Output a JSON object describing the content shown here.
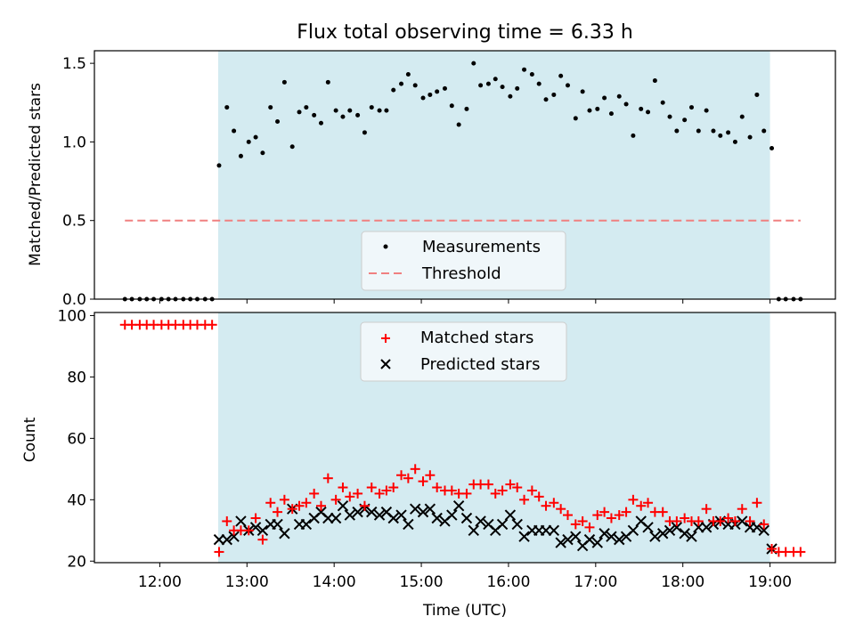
{
  "chart_data": [
    {
      "type": "scatter",
      "title": "Flux total observing time = 6.33 h",
      "ylabel": "Matched/Predicted stars",
      "xlim_hours": [
        11.25,
        19.75
      ],
      "ylim": [
        0,
        1.58
      ],
      "yticks": [
        "0.0",
        "0.5",
        "1.0",
        "1.5"
      ],
      "shaded_interval_hours": [
        12.67,
        19.0
      ],
      "shade_color": "#d4ebf1",
      "legend_position": "lower center",
      "threshold": {
        "name": "Threshold",
        "value": 0.5,
        "x_range_hours": [
          11.6,
          19.35
        ],
        "color": "#f08080"
      },
      "series": [
        {
          "name": "Measurements",
          "marker": "dot",
          "color": "#000000",
          "x_hours": [
            11.6,
            11.68,
            11.77,
            11.85,
            11.93,
            12.02,
            12.1,
            12.18,
            12.27,
            12.35,
            12.43,
            12.52,
            12.6,
            12.68,
            12.77,
            12.85,
            12.93,
            13.02,
            13.1,
            13.18,
            13.27,
            13.35,
            13.43,
            13.52,
            13.6,
            13.68,
            13.77,
            13.85,
            13.93,
            14.02,
            14.1,
            14.18,
            14.27,
            14.35,
            14.43,
            14.52,
            14.6,
            14.68,
            14.77,
            14.85,
            14.93,
            15.02,
            15.1,
            15.18,
            15.27,
            15.35,
            15.43,
            15.52,
            15.6,
            15.68,
            15.77,
            15.85,
            15.93,
            16.02,
            16.1,
            16.18,
            16.27,
            16.35,
            16.43,
            16.52,
            16.6,
            16.68,
            16.77,
            16.85,
            16.93,
            17.02,
            17.1,
            17.18,
            17.27,
            17.35,
            17.43,
            17.52,
            17.6,
            17.68,
            17.77,
            17.85,
            17.93,
            18.02,
            18.1,
            18.18,
            18.27,
            18.35,
            18.43,
            18.52,
            18.6,
            18.68,
            18.77,
            18.85,
            18.93,
            19.02,
            19.1,
            19.18,
            19.27,
            19.35
          ],
          "y": [
            0,
            0,
            0,
            0,
            0,
            0,
            0,
            0,
            0,
            0,
            0,
            0,
            0,
            0.85,
            1.22,
            1.07,
            0.91,
            1.0,
            1.03,
            0.93,
            1.22,
            1.13,
            1.38,
            0.97,
            1.19,
            1.22,
            1.17,
            1.12,
            1.38,
            1.2,
            1.16,
            1.2,
            1.17,
            1.06,
            1.22,
            1.2,
            1.2,
            1.33,
            1.37,
            1.43,
            1.36,
            1.28,
            1.3,
            1.32,
            1.34,
            1.23,
            1.11,
            1.21,
            1.5,
            1.36,
            1.37,
            1.4,
            1.35,
            1.29,
            1.34,
            1.46,
            1.43,
            1.37,
            1.27,
            1.3,
            1.42,
            1.36,
            1.15,
            1.32,
            1.2,
            1.21,
            1.28,
            1.18,
            1.29,
            1.24,
            1.04,
            1.21,
            1.19,
            1.39,
            1.25,
            1.16,
            1.07,
            1.14,
            1.22,
            1.07,
            1.2,
            1.07,
            1.04,
            1.06,
            1.0,
            1.16,
            1.03,
            1.3,
            1.07,
            0.96,
            0,
            0,
            0,
            0
          ]
        }
      ]
    },
    {
      "type": "scatter",
      "xlabel": "Time (UTC)",
      "ylabel": "Count",
      "xlim_hours": [
        11.25,
        19.75
      ],
      "ylim": [
        19.5,
        101
      ],
      "yticks": [
        "20",
        "40",
        "60",
        "80",
        "100"
      ],
      "xticks": [
        "12:00",
        "13:00",
        "14:00",
        "15:00",
        "16:00",
        "17:00",
        "18:00",
        "19:00"
      ],
      "shaded_interval_hours": [
        12.67,
        19.0
      ],
      "shade_color": "#d4ebf1",
      "legend_position": "upper center",
      "series": [
        {
          "name": "Matched stars",
          "marker": "plus",
          "color": "#ff0000",
          "x_hours": [
            11.6,
            11.68,
            11.77,
            11.85,
            11.93,
            12.02,
            12.1,
            12.18,
            12.27,
            12.35,
            12.43,
            12.52,
            12.6,
            12.68,
            12.77,
            12.85,
            12.93,
            13.02,
            13.1,
            13.18,
            13.27,
            13.35,
            13.43,
            13.52,
            13.6,
            13.68,
            13.77,
            13.85,
            13.93,
            14.02,
            14.1,
            14.18,
            14.27,
            14.35,
            14.43,
            14.52,
            14.6,
            14.68,
            14.77,
            14.85,
            14.93,
            15.02,
            15.1,
            15.18,
            15.27,
            15.35,
            15.43,
            15.52,
            15.6,
            15.68,
            15.77,
            15.85,
            15.93,
            16.02,
            16.1,
            16.18,
            16.27,
            16.35,
            16.43,
            16.52,
            16.6,
            16.68,
            16.77,
            16.85,
            16.93,
            17.02,
            17.1,
            17.18,
            17.27,
            17.35,
            17.43,
            17.52,
            17.6,
            17.68,
            17.77,
            17.85,
            17.93,
            18.02,
            18.1,
            18.18,
            18.27,
            18.35,
            18.43,
            18.52,
            18.6,
            18.68,
            18.77,
            18.85,
            18.93,
            19.02,
            19.1,
            19.18,
            19.27,
            19.35
          ],
          "y": [
            97,
            97,
            97,
            97,
            97,
            97,
            97,
            97,
            97,
            97,
            97,
            97,
            97,
            23,
            33,
            30,
            30,
            30,
            34,
            27,
            39,
            36,
            40,
            37,
            38,
            39,
            42,
            38,
            47,
            40,
            44,
            41,
            42,
            38,
            44,
            42,
            43,
            44,
            48,
            47,
            50,
            46,
            48,
            44,
            43,
            43,
            42,
            42,
            45,
            45,
            45,
            42,
            43,
            45,
            44,
            40,
            43,
            41,
            38,
            39,
            37,
            35,
            32,
            33,
            31,
            35,
            36,
            34,
            35,
            36,
            40,
            38,
            39,
            36,
            36,
            33,
            33,
            34,
            33,
            33,
            37,
            33,
            33,
            34,
            33,
            37,
            33,
            39,
            32,
            24,
            23,
            23,
            23,
            23
          ]
        },
        {
          "name": "Predicted stars",
          "marker": "x",
          "color": "#000000",
          "x_hours": [
            12.68,
            12.77,
            12.85,
            12.93,
            13.02,
            13.1,
            13.18,
            13.27,
            13.35,
            13.43,
            13.52,
            13.6,
            13.68,
            13.77,
            13.85,
            13.93,
            14.02,
            14.1,
            14.18,
            14.27,
            14.35,
            14.43,
            14.52,
            14.6,
            14.68,
            14.77,
            14.85,
            14.93,
            15.02,
            15.1,
            15.18,
            15.27,
            15.35,
            15.43,
            15.52,
            15.6,
            15.68,
            15.77,
            15.85,
            15.93,
            16.02,
            16.1,
            16.18,
            16.27,
            16.35,
            16.43,
            16.52,
            16.6,
            16.68,
            16.77,
            16.85,
            16.93,
            17.02,
            17.1,
            17.18,
            17.27,
            17.35,
            17.43,
            17.52,
            17.6,
            17.68,
            17.77,
            17.85,
            17.93,
            18.02,
            18.1,
            18.18,
            18.27,
            18.35,
            18.43,
            18.52,
            18.6,
            18.68,
            18.77,
            18.85,
            18.93,
            19.02
          ],
          "y": [
            27,
            27,
            28,
            33,
            30,
            31,
            30,
            32,
            32,
            29,
            37,
            32,
            32,
            34,
            36,
            34,
            34,
            38,
            35,
            36,
            37,
            36,
            35,
            36,
            34,
            35,
            32,
            37,
            36,
            37,
            34,
            33,
            35,
            38,
            34,
            30,
            33,
            32,
            30,
            32,
            35,
            32,
            28,
            30,
            30,
            30,
            30,
            26,
            27,
            28,
            25,
            27,
            26,
            29,
            28,
            27,
            28,
            30,
            33,
            31,
            28,
            29,
            30,
            31,
            29,
            28,
            31,
            31,
            32,
            33,
            32,
            32,
            33,
            31,
            31,
            30,
            24
          ]
        }
      ]
    }
  ]
}
